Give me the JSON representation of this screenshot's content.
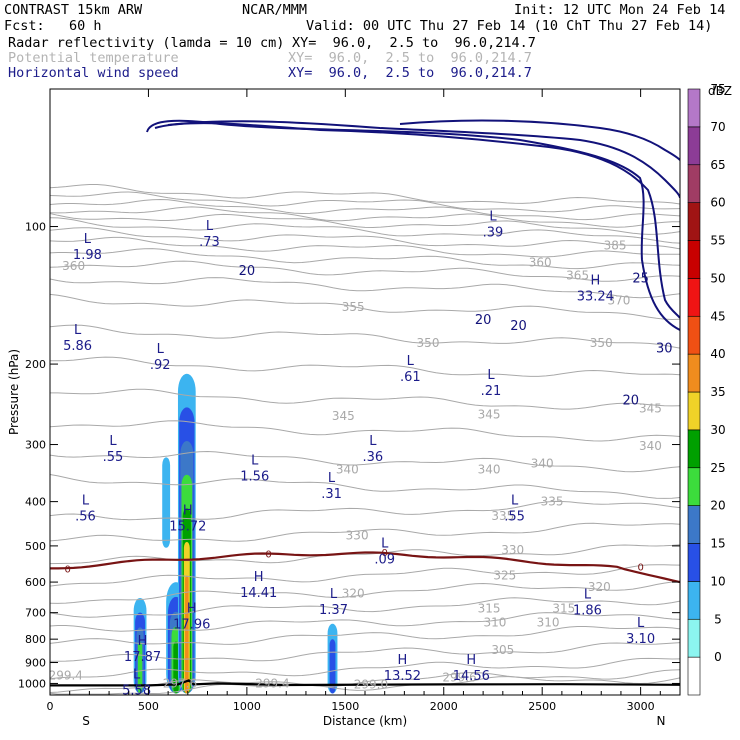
{
  "header": {
    "model": "CONTRAST 15km ARW",
    "org": "NCAR/MMM",
    "init": "Init: 12 UTC Mon 24 Feb 14",
    "fcst": "Fcst:   60 h",
    "valid": "Valid: 00 UTC Thu 27 Feb 14 (10 ChT Thu 27 Feb 14)",
    "field1_name": "Radar reflectivity (lamda = 10 cm)",
    "field1_xy": "XY=  96.0,  2.5 to  96.0,214.7",
    "field2_name": "Potential temperature",
    "field2_xy": "XY=  96.0,  2.5 to  96.0,214.7",
    "field3_name": "Horizontal wind speed",
    "field3_xy": "XY=  96.0,  2.5 to  96.0,214.7"
  },
  "colors": {
    "reflectivity_ramp": [
      "#ffffff",
      "#8cf5f0",
      "#3cb4f0",
      "#2850e6",
      "#3c78c8",
      "#3cdc3c",
      "#00a000",
      "#f0d228",
      "#f08c1e",
      "#f05014",
      "#f01414",
      "#c80000",
      "#a01414",
      "#a03c64",
      "#8c3c96",
      "#b478c8"
    ],
    "theta": "#a9a9a9",
    "wind": "#12127a",
    "freezing": "#781414",
    "terrain": "#000000",
    "label": "#1c1c8a"
  },
  "chart_data": {
    "type": "cross-section",
    "title": "Radar reflectivity (lamda = 10 cm)",
    "xlabel": "Distance (km)",
    "ylabel": "Pressure (hPa)",
    "xlim": [
      0,
      3200
    ],
    "ylim": [
      1060,
      50
    ],
    "y_scale": "log",
    "xticks": [
      0,
      500,
      1000,
      1500,
      2000,
      2500,
      3000
    ],
    "yticks": [
      100,
      200,
      300,
      400,
      500,
      600,
      700,
      800,
      900,
      1000
    ],
    "end_labels": {
      "left": "S",
      "right": "N"
    },
    "colorbar": {
      "unit": "dBZ",
      "levels": [
        0,
        5,
        10,
        15,
        20,
        25,
        30,
        35,
        40,
        45,
        50,
        55,
        60,
        65,
        70,
        75
      ]
    },
    "reflectivity_cells": [
      {
        "x": [
          425,
          490
        ],
        "p": [
          650,
          1000
        ],
        "max_dbz": 20
      },
      {
        "x": [
          590,
          690
        ],
        "p": [
          600,
          1000
        ],
        "max_dbz": 25
      },
      {
        "x": [
          650,
          740
        ],
        "p": [
          210,
          1000
        ],
        "max_dbz": 35
      },
      {
        "x": [
          570,
          610
        ],
        "p": [
          320,
          480
        ],
        "max_dbz": 5
      },
      {
        "x": [
          1410,
          1460
        ],
        "p": [
          740,
          1000
        ],
        "max_dbz": 10
      }
    ],
    "theta_labels": [
      {
        "x": 2870,
        "p": 110,
        "text": "385"
      },
      {
        "x": 2490,
        "p": 120,
        "text": "360"
      },
      {
        "x": 2680,
        "p": 128,
        "text": "365"
      },
      {
        "x": 120,
        "p": 122,
        "text": "360"
      },
      {
        "x": 1540,
        "p": 150,
        "text": "355"
      },
      {
        "x": 2890,
        "p": 145,
        "text": "370"
      },
      {
        "x": 1920,
        "p": 180,
        "text": "350"
      },
      {
        "x": 2800,
        "p": 180,
        "text": "350"
      },
      {
        "x": 3050,
        "p": 250,
        "text": "345"
      },
      {
        "x": 1490,
        "p": 260,
        "text": "345"
      },
      {
        "x": 2230,
        "p": 258,
        "text": "345"
      },
      {
        "x": 1510,
        "p": 340,
        "text": "340"
      },
      {
        "x": 2230,
        "p": 340,
        "text": "340"
      },
      {
        "x": 2500,
        "p": 330,
        "text": "340"
      },
      {
        "x": 3050,
        "p": 302,
        "text": "340"
      },
      {
        "x": 2550,
        "p": 400,
        "text": "335"
      },
      {
        "x": 2300,
        "p": 430,
        "text": "335"
      },
      {
        "x": 1560,
        "p": 475,
        "text": "330"
      },
      {
        "x": 2350,
        "p": 510,
        "text": "330"
      },
      {
        "x": 2310,
        "p": 580,
        "text": "325"
      },
      {
        "x": 1540,
        "p": 635,
        "text": "320"
      },
      {
        "x": 2790,
        "p": 615,
        "text": "320"
      },
      {
        "x": 2230,
        "p": 685,
        "text": "315"
      },
      {
        "x": 2610,
        "p": 685,
        "text": "315"
      },
      {
        "x": 2260,
        "p": 735,
        "text": "310"
      },
      {
        "x": 2530,
        "p": 735,
        "text": "310"
      },
      {
        "x": 2300,
        "p": 845,
        "text": "305"
      },
      {
        "x": 80,
        "p": 960,
        "text": "299.4"
      },
      {
        "x": 1130,
        "p": 1000,
        "text": "299.4"
      },
      {
        "x": 2080,
        "p": 970,
        "text": "299.6"
      },
      {
        "x": 1630,
        "p": 1005,
        "text": "299.0"
      },
      {
        "x": 660,
        "p": 1000,
        "text": "297.6"
      }
    ],
    "wind_labels": [
      {
        "x": 1000,
        "p": 125,
        "text": "20"
      },
      {
        "x": 2200,
        "p": 160,
        "text": "20"
      },
      {
        "x": 2380,
        "p": 165,
        "text": "20"
      },
      {
        "x": 3000,
        "p": 130,
        "text": "25"
      },
      {
        "x": 3120,
        "p": 185,
        "text": "30"
      },
      {
        "x": 2950,
        "p": 240,
        "text": "20"
      }
    ],
    "freezing_labels": [
      {
        "x": 90,
        "p": 560,
        "text": "0"
      },
      {
        "x": 1110,
        "p": 520,
        "text": "0"
      },
      {
        "x": 1700,
        "p": 515,
        "text": "0"
      },
      {
        "x": 3000,
        "p": 555,
        "text": "0"
      }
    ],
    "extrema": [
      {
        "x": 190,
        "p": 112,
        "type": "L",
        "value": "1.98"
      },
      {
        "x": 810,
        "p": 105,
        "type": "L",
        "value": ".73"
      },
      {
        "x": 2250,
        "p": 100,
        "type": "L",
        "value": ".39"
      },
      {
        "x": 2770,
        "p": 138,
        "type": "H",
        "value": "33.24"
      },
      {
        "x": 140,
        "p": 177,
        "type": "L",
        "value": "5.86"
      },
      {
        "x": 560,
        "p": 195,
        "type": "L",
        "value": ".92"
      },
      {
        "x": 1830,
        "p": 207,
        "type": "L",
        "value": ".61"
      },
      {
        "x": 2240,
        "p": 222,
        "type": "L",
        "value": ".21"
      },
      {
        "x": 320,
        "p": 310,
        "type": "L",
        "value": ".55"
      },
      {
        "x": 1640,
        "p": 310,
        "type": "L",
        "value": ".36"
      },
      {
        "x": 1040,
        "p": 342,
        "type": "L",
        "value": "1.56"
      },
      {
        "x": 1430,
        "p": 373,
        "type": "L",
        "value": ".31"
      },
      {
        "x": 180,
        "p": 418,
        "type": "L",
        "value": ".56"
      },
      {
        "x": 2360,
        "p": 418,
        "type": "L",
        "value": ".55"
      },
      {
        "x": 700,
        "p": 440,
        "type": "H",
        "value": "15.72"
      },
      {
        "x": 1700,
        "p": 520,
        "type": "L",
        "value": ".09"
      },
      {
        "x": 1060,
        "p": 615,
        "type": "H",
        "value": "14.41"
      },
      {
        "x": 1440,
        "p": 670,
        "type": "L",
        "value": "1.37"
      },
      {
        "x": 2730,
        "p": 672,
        "type": "L",
        "value": "1.86"
      },
      {
        "x": 720,
        "p": 720,
        "type": "H",
        "value": "17.96"
      },
      {
        "x": 3000,
        "p": 775,
        "type": "L",
        "value": "3.10"
      },
      {
        "x": 470,
        "p": 850,
        "type": "H",
        "value": "17.87"
      },
      {
        "x": 1790,
        "p": 935,
        "type": "H",
        "value": "13.52"
      },
      {
        "x": 2140,
        "p": 935,
        "type": "H",
        "value": "14.56"
      },
      {
        "x": 440,
        "p": 1005,
        "type": "L",
        "value": "5.58"
      }
    ]
  }
}
